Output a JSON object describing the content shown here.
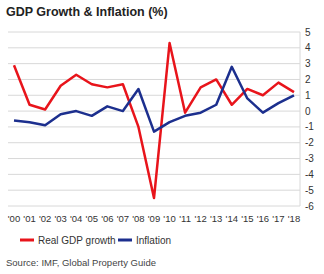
{
  "chart_data": {
    "type": "line",
    "title": "GDP Growth & Inflation (%)",
    "source": "Source: IMF, Global Property Guide",
    "categories": [
      "'00",
      "'01",
      "'02",
      "'03",
      "'04",
      "'05",
      "'06",
      "'07",
      "'08",
      "'09",
      "'10",
      "'11",
      "'12",
      "'13",
      "'14",
      "'15",
      "'16",
      "'17",
      "'18"
    ],
    "series": [
      {
        "name": "Real GDP growth",
        "color": "#e8141b",
        "values": [
          2.9,
          0.4,
          0.1,
          1.6,
          2.3,
          1.7,
          1.5,
          1.7,
          -1.0,
          -5.5,
          4.3,
          -0.1,
          1.5,
          2.0,
          0.4,
          1.4,
          1.0,
          1.8,
          1.2
        ]
      },
      {
        "name": "Inflation",
        "color": "#1c2f8e",
        "values": [
          -0.6,
          -0.7,
          -0.9,
          -0.2,
          0.0,
          -0.3,
          0.3,
          0.0,
          1.4,
          -1.3,
          -0.7,
          -0.3,
          -0.1,
          0.4,
          2.8,
          0.8,
          -0.1,
          0.5,
          1.0
        ]
      }
    ],
    "ylim": [
      -6,
      5
    ],
    "yticks": [
      5,
      4,
      3,
      2,
      1,
      0,
      -1,
      -2,
      -3,
      -4,
      -5,
      -6
    ],
    "grid": true,
    "legend": "bottom"
  }
}
